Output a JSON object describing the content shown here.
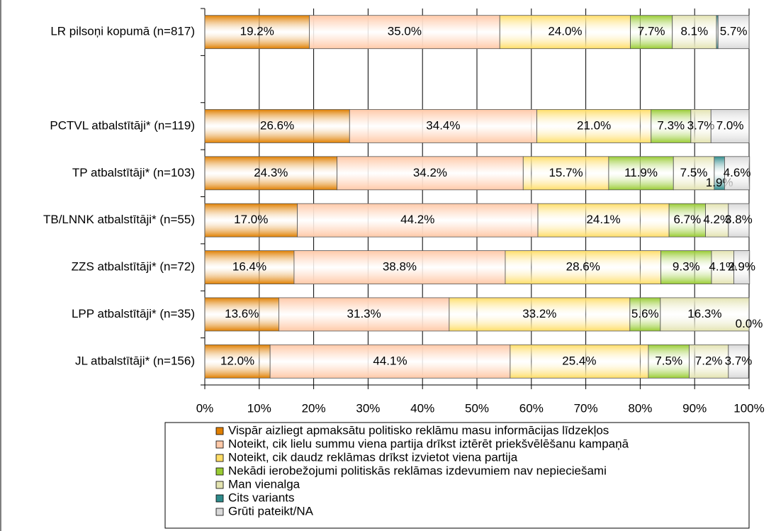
{
  "chart_data": {
    "type": "stacked-bar-horizontal",
    "categories": [
      "LR pilsoņi kopumā (n=817)",
      null,
      "PCTVL atbalstītāji* (n=119)",
      "TP atbalstītāji* (n=103)",
      "TB/LNNK atbalstītāji* (n=55)",
      "ZZS atbalstītāji* (n=72)",
      "LPP atbalstītāji* (n=35)",
      "JL atbalstītāji* (n=156)"
    ],
    "series": [
      {
        "name": "Vispār aizliegt apmaksātu politisko reklāmu masu informācijas līdzekļos",
        "color": "#e07f00",
        "values": [
          19.2,
          null,
          26.6,
          24.3,
          17.0,
          16.4,
          13.6,
          12.0
        ],
        "value_labels": [
          "19.2%",
          null,
          "26.6%",
          "24.3%",
          "17.0%",
          "16.4%",
          "13.6%",
          "12.0%"
        ]
      },
      {
        "name": "Noteikt, cik lielu summu viena partija drīkst iztērēt priekšvēlēšanu kampaņā",
        "color": "#ffc9a8",
        "values": [
          35.0,
          null,
          34.4,
          34.2,
          44.2,
          38.8,
          31.3,
          44.1
        ],
        "value_labels": [
          "35.0%",
          null,
          "34.4%",
          "34.2%",
          "44.2%",
          "38.8%",
          "31.3%",
          "44.1%"
        ]
      },
      {
        "name": "Noteikt, cik daudz reklāmas drīkst izvietot viena partija",
        "color": "#ffdd66",
        "values": [
          24.0,
          null,
          21.0,
          15.7,
          24.1,
          28.6,
          33.2,
          25.4
        ],
        "value_labels": [
          "24.0%",
          null,
          "21.0%",
          "15.7%",
          "24.1%",
          "28.6%",
          "33.2%",
          "25.4%"
        ]
      },
      {
        "name": "Nekādi ierobežojumi politiskās reklāmas izdevumiem nav nepieciešami",
        "color": "#99cc33",
        "values": [
          7.7,
          null,
          7.3,
          11.9,
          6.7,
          9.3,
          5.6,
          7.5
        ],
        "value_labels": [
          "7.7%",
          null,
          "7.3%",
          "11.9%",
          "6.7%",
          "9.3%",
          "5.6%",
          "7.5%"
        ]
      },
      {
        "name": "Man vienalga",
        "color": "#e3e3b0",
        "values": [
          8.1,
          null,
          3.7,
          7.5,
          4.2,
          4.1,
          16.3,
          7.2
        ],
        "value_labels": [
          "8.1%",
          null,
          "3.7%",
          "7.5%",
          "4.2%",
          "4.1%",
          "16.3%",
          "7.2%"
        ]
      },
      {
        "name": "Cits variants",
        "color": "#2e8b8b",
        "values": [
          0.3,
          null,
          0,
          1.9,
          0,
          0,
          0,
          0
        ],
        "value_labels": [
          null,
          null,
          null,
          "1.9%",
          null,
          null,
          null,
          null
        ]
      },
      {
        "name": "Grūti pateikt/NA",
        "color": "#d9d9d9",
        "values": [
          5.7,
          null,
          7.0,
          4.6,
          3.8,
          2.9,
          0.0,
          3.7
        ],
        "value_labels": [
          "5.7%",
          null,
          "7.0%",
          "4.6%",
          "3.8%",
          "2.9%",
          "0.0%",
          "3.7%"
        ]
      }
    ],
    "xlim": [
      0,
      100
    ],
    "xticks": [
      {
        "value": 0,
        "label": "0%"
      },
      {
        "value": 10,
        "label": "10%"
      },
      {
        "value": 20,
        "label": "20%"
      },
      {
        "value": 30,
        "label": "30%"
      },
      {
        "value": 40,
        "label": "40%"
      },
      {
        "value": 50,
        "label": "50%"
      },
      {
        "value": 60,
        "label": "60%"
      },
      {
        "value": 70,
        "label": "70%"
      },
      {
        "value": 80,
        "label": "80%"
      },
      {
        "value": 90,
        "label": "90%"
      },
      {
        "value": 100,
        "label": "100%"
      }
    ],
    "grid": true,
    "legend": "bottom"
  }
}
